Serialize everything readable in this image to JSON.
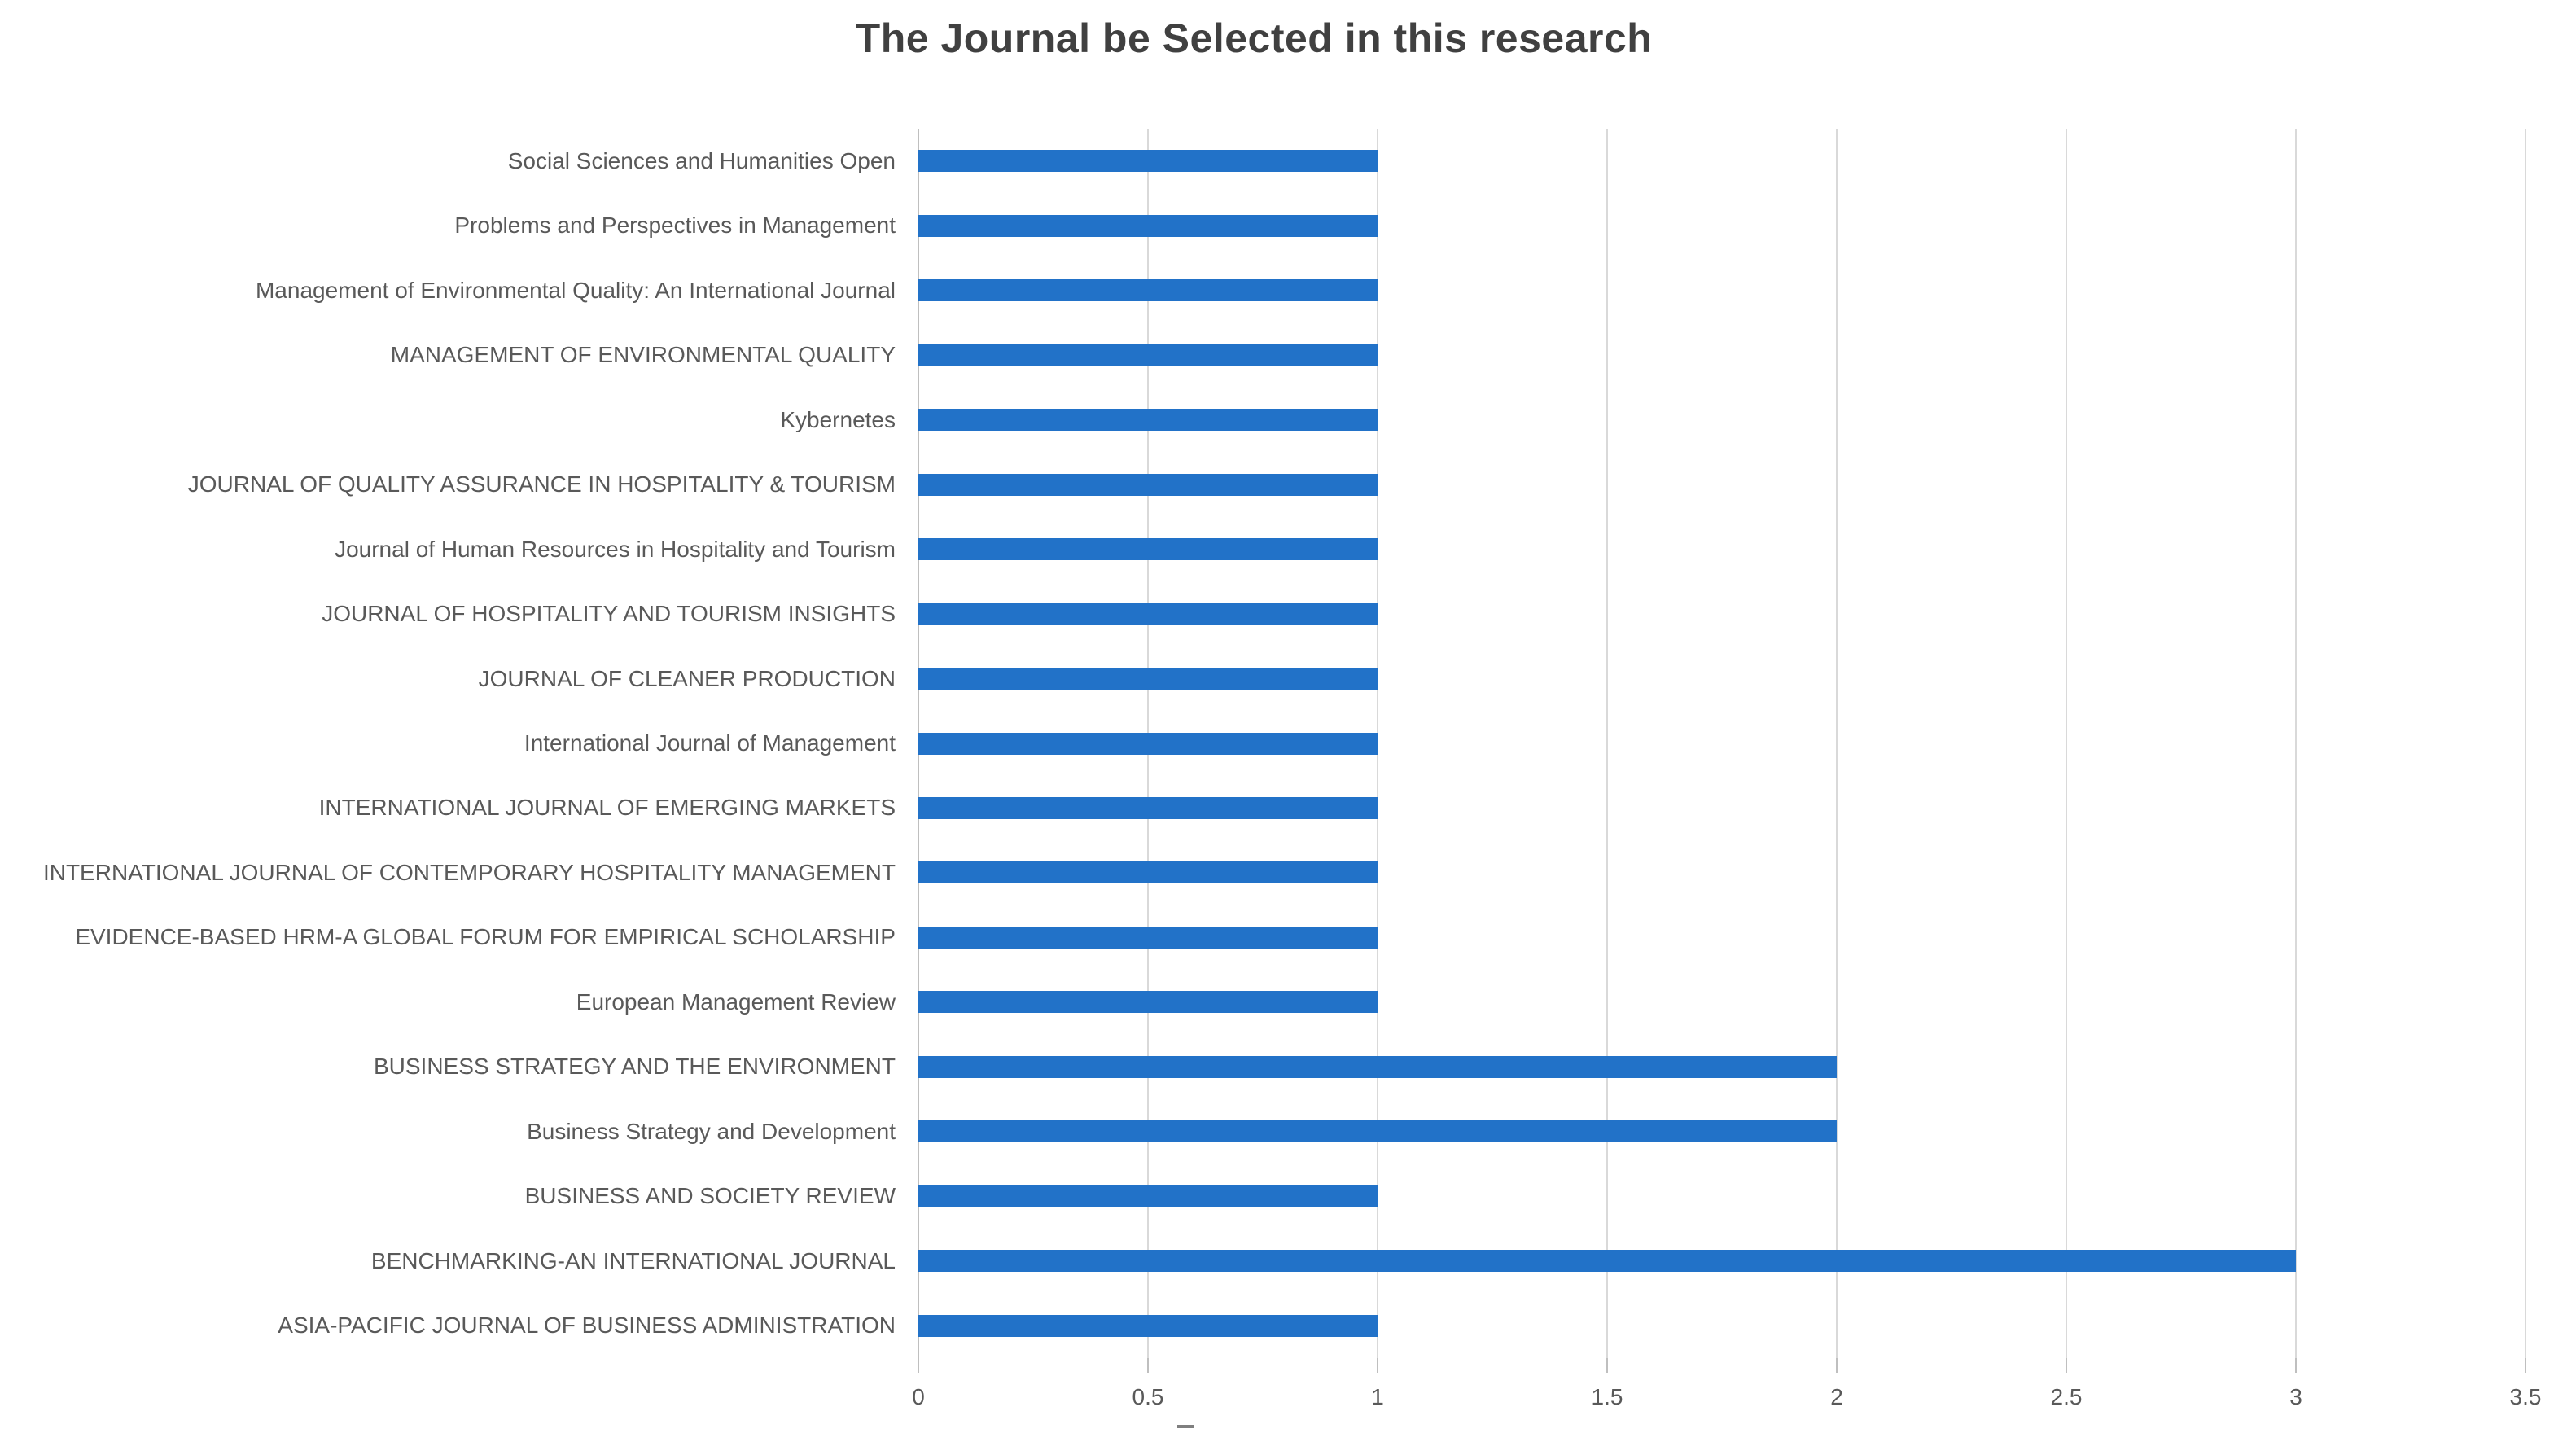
{
  "title": "The Journal be Selected in this research",
  "colors": {
    "bar": "#2272c8",
    "gridline": "#d9d9d9",
    "axis_line": "#bfbfbf",
    "title_text": "#404040",
    "label_text": "#595959",
    "background": "#ffffff"
  },
  "chart_data": {
    "type": "bar",
    "orientation": "horizontal",
    "title": "The Journal be Selected in this research",
    "categories": [
      "Social Sciences and Humanities Open",
      "Problems and Perspectives in Management",
      "Management of Environmental Quality: An International Journal",
      "MANAGEMENT OF ENVIRONMENTAL QUALITY",
      "Kybernetes",
      "JOURNAL OF QUALITY ASSURANCE IN HOSPITALITY & TOURISM",
      "Journal of Human Resources in Hospitality and Tourism",
      "JOURNAL OF HOSPITALITY AND TOURISM INSIGHTS",
      "JOURNAL OF CLEANER PRODUCTION",
      "International Journal of Management",
      "INTERNATIONAL JOURNAL OF EMERGING MARKETS",
      "INTERNATIONAL JOURNAL OF CONTEMPORARY HOSPITALITY MANAGEMENT",
      "EVIDENCE-BASED HRM-A GLOBAL FORUM FOR EMPIRICAL SCHOLARSHIP",
      "European Management Review",
      "BUSINESS STRATEGY AND THE ENVIRONMENT",
      "Business Strategy and Development",
      "BUSINESS AND SOCIETY REVIEW",
      "BENCHMARKING-AN INTERNATIONAL JOURNAL",
      "ASIA-PACIFIC JOURNAL OF BUSINESS ADMINISTRATION"
    ],
    "values": [
      1,
      1,
      1,
      1,
      1,
      1,
      1,
      1,
      1,
      1,
      1,
      1,
      1,
      1,
      2,
      2,
      1,
      3,
      1
    ],
    "xlabel": "",
    "ylabel": "",
    "xlim": [
      0,
      3.5
    ],
    "xticks": [
      0,
      0.5,
      1,
      1.5,
      2,
      2.5,
      3,
      3.5
    ],
    "xtick_labels": [
      "0",
      "0.5",
      "1",
      "1.5",
      "2",
      "2.5",
      "3",
      "3.5"
    ],
    "grid": "vertical",
    "legend": "none",
    "axis_artifact_mark": "_"
  }
}
